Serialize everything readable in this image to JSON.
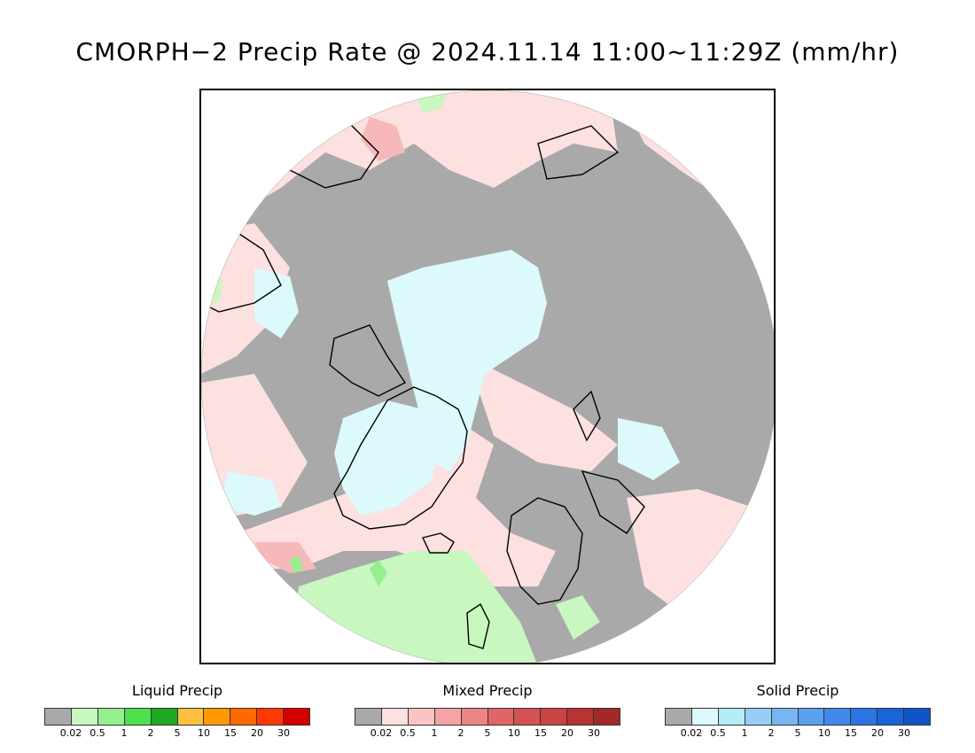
{
  "title": "CMORPH−2 Precip Rate @ 2024.11.14 11:00~11:29Z (mm/hr)",
  "map": {
    "projection": "north-polar-stereographic",
    "colors": {
      "no_precip": "#a9a9a9",
      "liquid_light": "#c8f7c0",
      "mixed_light": "#fde0e0",
      "mixed_mid": "#f6b8b8",
      "solid_light": "#dcfafc",
      "coast": "#000000"
    }
  },
  "legends": [
    {
      "title": "Liquid Precip",
      "colors": [
        "#a9a9a9",
        "#c8f7c0",
        "#96ef8c",
        "#4ce04c",
        "#20a820",
        "#ffbf40",
        "#ff9a00",
        "#ff6a00",
        "#ff3a00",
        "#d40000"
      ],
      "ticks": [
        "0.02",
        "0.5",
        "1",
        "2",
        "5",
        "10",
        "15",
        "20",
        "30"
      ]
    },
    {
      "title": "Mixed Precip",
      "colors": [
        "#a9a9a9",
        "#fde0e0",
        "#fac4c4",
        "#f4a4a4",
        "#ec8484",
        "#e06666",
        "#d45252",
        "#c84444",
        "#b83434",
        "#a42828"
      ],
      "ticks": [
        "0.02",
        "0.5",
        "1",
        "2",
        "5",
        "10",
        "15",
        "20",
        "30"
      ]
    },
    {
      "title": "Solid Precip",
      "colors": [
        "#a9a9a9",
        "#dcfafc",
        "#b4ecf8",
        "#96cef6",
        "#78b6f2",
        "#5aa0ee",
        "#4088ea",
        "#2a74e4",
        "#1a64d8",
        "#1054c8"
      ],
      "ticks": [
        "0.02",
        "0.5",
        "1",
        "2",
        "5",
        "10",
        "15",
        "20",
        "30"
      ]
    }
  ]
}
